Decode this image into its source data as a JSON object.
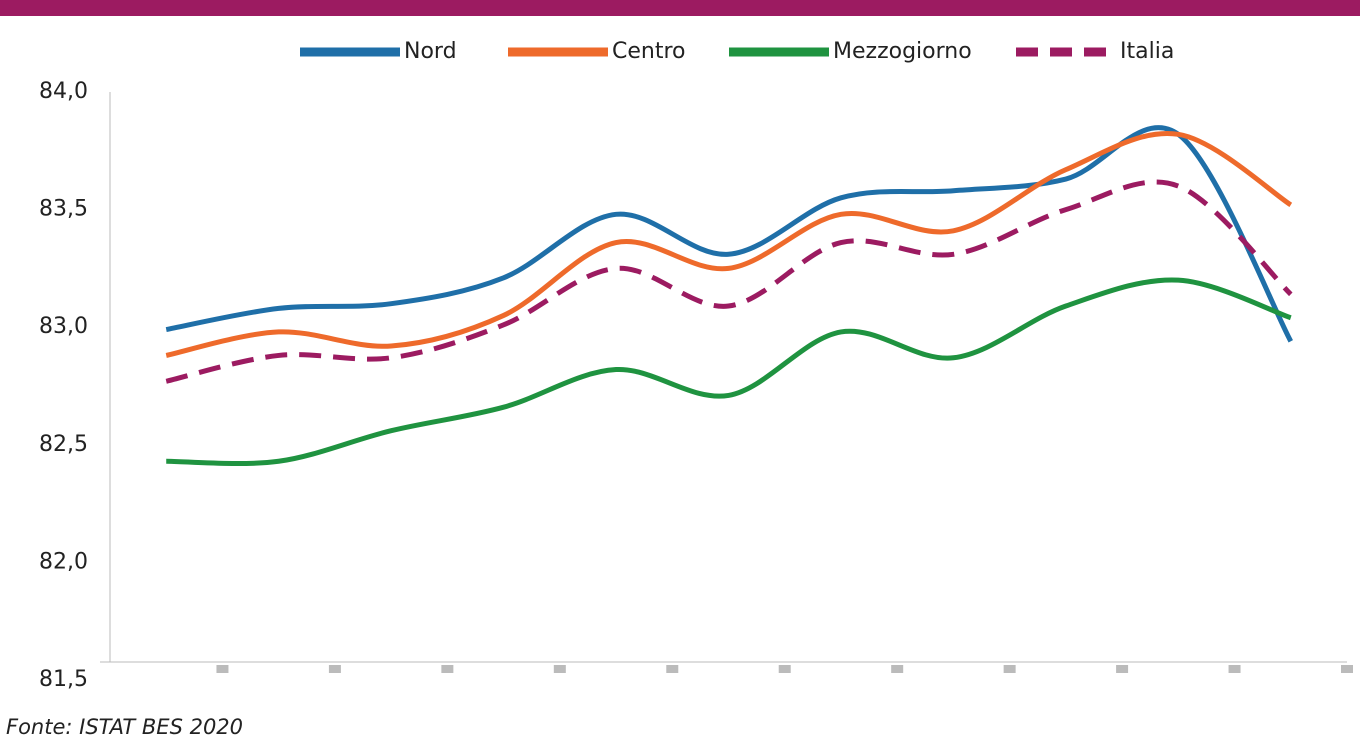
{
  "chart_data": {
    "type": "line",
    "categories": [
      null,
      null,
      null,
      null,
      null,
      null,
      null,
      null,
      null,
      null,
      null
    ],
    "series": [
      {
        "name": "Nord",
        "color": "#1f6fa8",
        "values": [
          82.99,
          83.08,
          83.1,
          83.21,
          83.48,
          83.31,
          83.55,
          83.58,
          83.63,
          83.82,
          82.94
        ]
      },
      {
        "name": "Centro",
        "color": "#ee6a2b",
        "values": [
          82.88,
          82.98,
          82.92,
          83.05,
          83.36,
          83.25,
          83.48,
          83.41,
          83.67,
          83.82,
          83.52
        ]
      },
      {
        "name": "Mezzogiorno",
        "color": "#1f9340",
        "values": [
          82.43,
          82.43,
          82.56,
          82.66,
          82.82,
          82.71,
          82.98,
          82.87,
          83.09,
          83.2,
          83.04
        ]
      },
      {
        "name": "Italia",
        "color": "#9c1b61",
        "dashed": true,
        "values": [
          82.77,
          82.88,
          82.87,
          83.01,
          83.25,
          83.09,
          83.36,
          83.31,
          83.5,
          83.6,
          83.14
        ]
      }
    ],
    "ylim": [
      81.5,
      84.0
    ],
    "yticks": [
      {
        "value": 81.5,
        "label": "81,5"
      },
      {
        "value": 82.0,
        "label": "82,0"
      },
      {
        "value": 82.5,
        "label": "82,5"
      },
      {
        "value": 83.0,
        "label": "83,0"
      },
      {
        "value": 83.5,
        "label": "83,5"
      },
      {
        "value": 84.0,
        "label": "84,0"
      }
    ],
    "source": "Fonte: ISTAT BES 2020"
  }
}
